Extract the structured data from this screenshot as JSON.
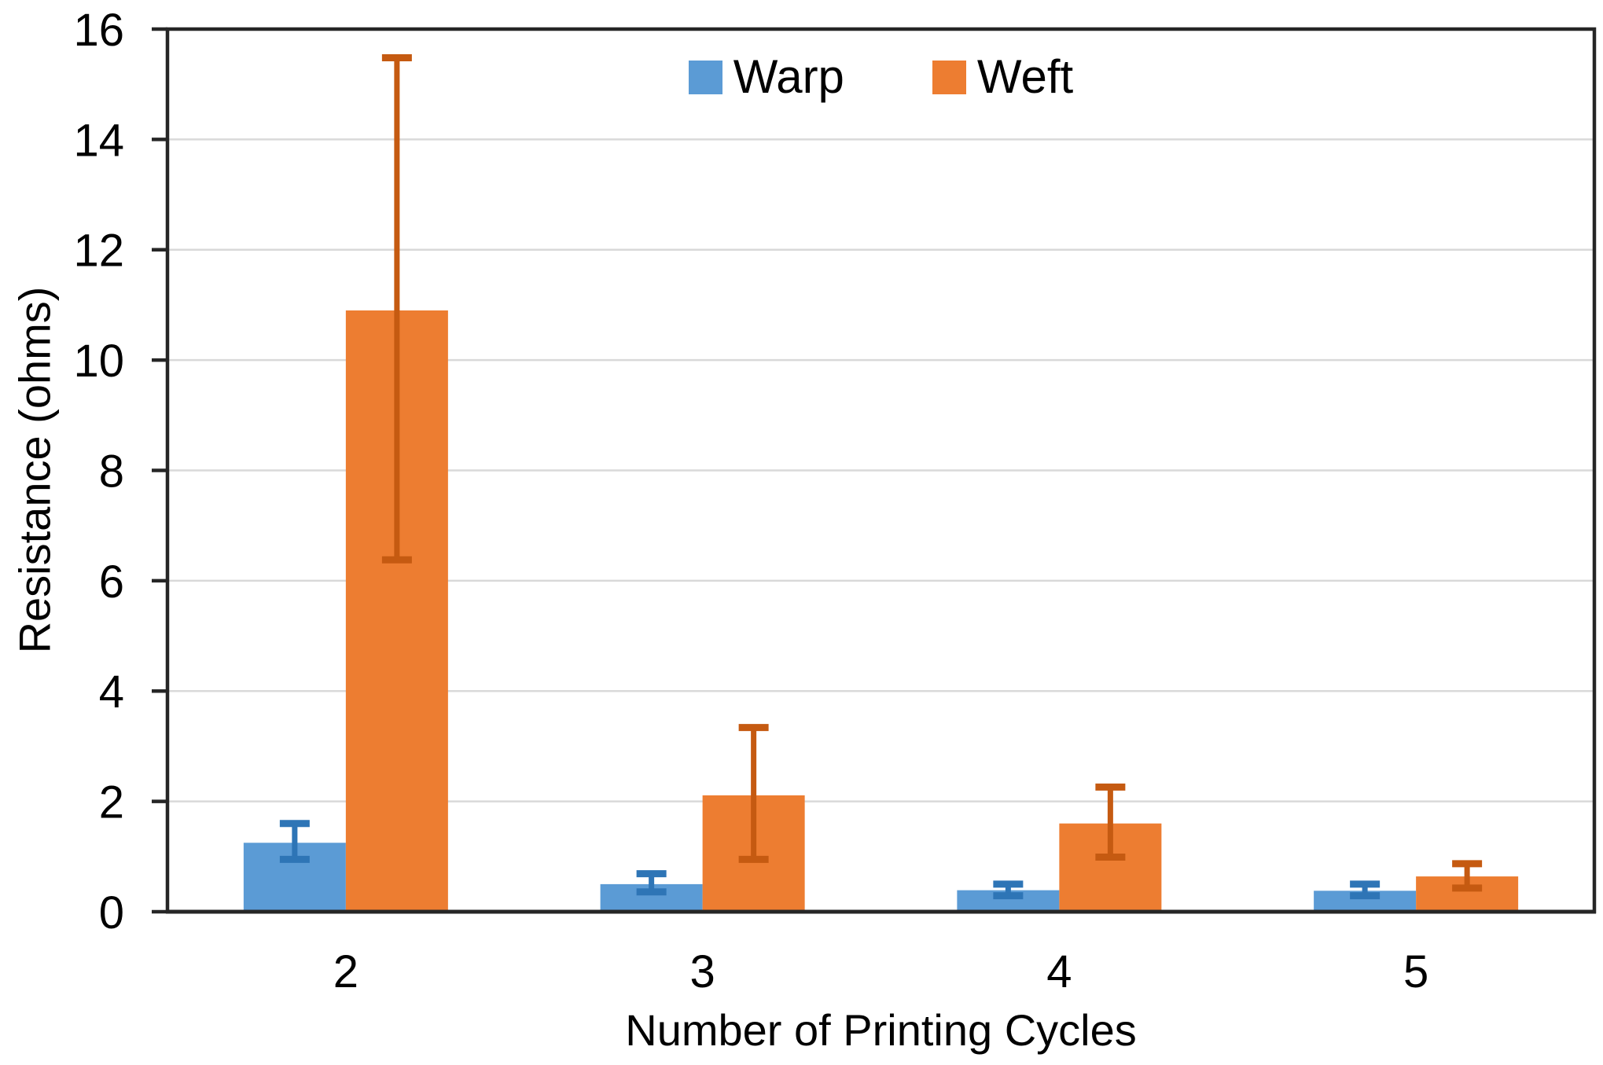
{
  "chart_data": {
    "type": "bar",
    "title": "",
    "xlabel": "Number of Printing Cycles",
    "ylabel": "Resistance (ohms)",
    "categories": [
      "2",
      "3",
      "4",
      "5"
    ],
    "series": [
      {
        "name": "Warp",
        "color": "#5B9BD5",
        "error_color": "#2E75B6",
        "values": [
          1.25,
          0.5,
          0.39,
          0.38
        ],
        "error_plus": [
          0.35,
          0.19,
          0.11,
          0.12
        ],
        "error_minus": [
          0.3,
          0.14,
          0.1,
          0.09
        ]
      },
      {
        "name": "Weft",
        "color": "#ED7D31",
        "error_color": "#C55A11",
        "values": [
          10.9,
          2.11,
          1.6,
          0.64
        ],
        "error_plus": [
          4.58,
          1.23,
          0.66,
          0.23
        ],
        "error_minus": [
          4.52,
          1.16,
          0.61,
          0.21
        ]
      }
    ],
    "ylim": [
      0,
      16
    ],
    "ytick_step": 2,
    "yticks": [
      "0",
      "2",
      "4",
      "6",
      "8",
      "10",
      "12",
      "14",
      "16"
    ],
    "grid": true,
    "legend_position": "top-center"
  },
  "style": {
    "axis_color": "#262626",
    "grid_color": "#d9d9d9",
    "text_color": "#000000",
    "background": "#ffffff"
  }
}
